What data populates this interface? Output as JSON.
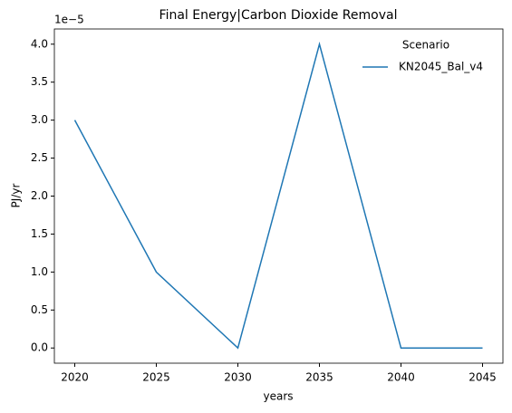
{
  "chart_data": {
    "type": "line",
    "title": "Final Energy|Carbon Dioxide Removal",
    "x_label": "years",
    "y_label": "PJ/yr",
    "y_offset_label": "1e−5",
    "x": [
      2020,
      2025,
      2030,
      2035,
      2040,
      2045
    ],
    "series": [
      {
        "name": "KN2045_Bal_v4",
        "color": "#1f77b4",
        "values": [
          3,
          1,
          0,
          4,
          0,
          0
        ]
      }
    ],
    "legend_title": "Scenario",
    "legend": "upper right",
    "xlim": [
      2018.75,
      2046.25
    ],
    "xticks": [
      2020,
      2025,
      2030,
      2035,
      2040,
      2045
    ],
    "ylim": [
      -0.2,
      4.2
    ],
    "yticks": [
      {
        "value": 0,
        "label": "0.0"
      },
      {
        "value": 0.5,
        "label": "0.5"
      },
      {
        "value": 1,
        "label": "1.0"
      },
      {
        "value": 1.5,
        "label": "1.5"
      },
      {
        "value": 2,
        "label": "2.0"
      },
      {
        "value": 2.5,
        "label": "2.5"
      },
      {
        "value": 3,
        "label": "3.0"
      },
      {
        "value": 3.5,
        "label": "3.5"
      },
      {
        "value": 4,
        "label": "4.0"
      }
    ],
    "grid": false
  }
}
